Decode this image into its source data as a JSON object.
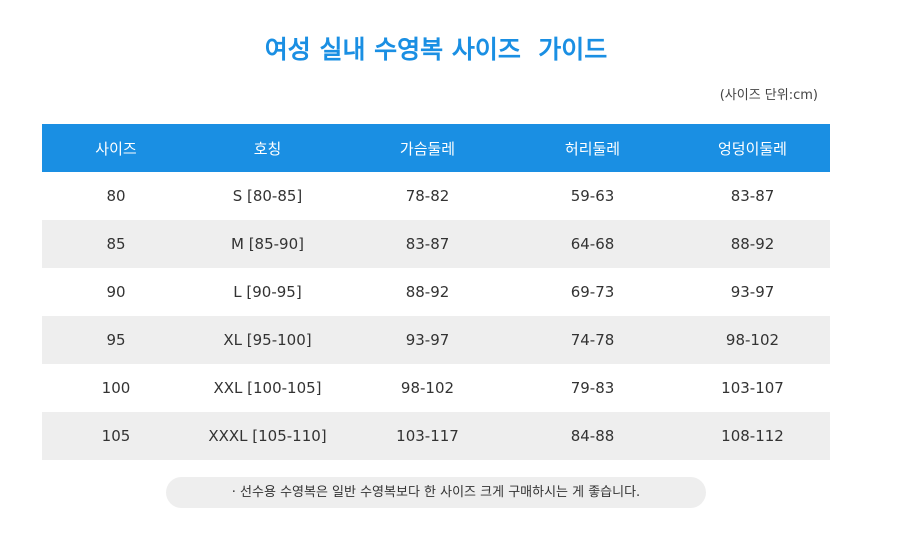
{
  "title": "여성 실내 수영복 사이즈  가이드",
  "unit_note": "(사이즈 단위:cm)",
  "table": {
    "headers": [
      "사이즈",
      "호칭",
      "가슴둘레",
      "허리둘레",
      "엉덩이둘레"
    ],
    "rows": [
      [
        "80",
        "S [80-85]",
        "78-82",
        "59-63",
        "83-87"
      ],
      [
        "85",
        "M [85-90]",
        "83-87",
        "64-68",
        "88-92"
      ],
      [
        "90",
        "L [90-95]",
        "88-92",
        "69-73",
        "93-97"
      ],
      [
        "95",
        "XL [95-100]",
        "93-97",
        "74-78",
        "98-102"
      ],
      [
        "100",
        "XXL [100-105]",
        "98-102",
        "79-83",
        "103-107"
      ],
      [
        "105",
        "XXXL [105-110]",
        "103-117",
        "84-88",
        "108-112"
      ]
    ]
  },
  "footnote": "· 선수용 수영복은 일반 수영복보다 한 사이즈 크게 구매하시는 게 좋습니다.",
  "colors": {
    "accent": "#1a8fe3",
    "stripe": "#eeeeee",
    "text": "#333333"
  }
}
